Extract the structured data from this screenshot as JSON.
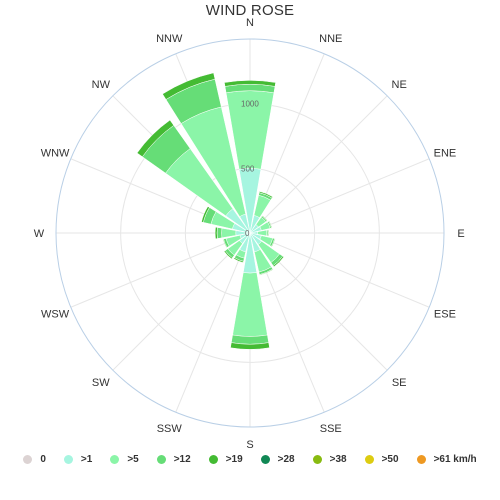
{
  "title": "WIND ROSE",
  "chart_data": {
    "type": "windrose",
    "directions": [
      "N",
      "NNE",
      "NE",
      "ENE",
      "E",
      "ESE",
      "SE",
      "SSE",
      "S",
      "SSW",
      "SW",
      "WSW",
      "W",
      "WNW",
      "NW",
      "NNW"
    ],
    "radial_max": 1500,
    "radial_ticks": [
      "0",
      "500",
      "1000"
    ],
    "radial_tick_values": [
      0,
      500,
      1000
    ],
    "legend": [
      "0",
      ">1",
      ">5",
      ">12",
      ">19",
      ">28",
      ">38",
      ">50",
      ">61 km/h"
    ],
    "legend_colors": [
      "#dcd3d3",
      "#a6f5e0",
      "#8bf5a8",
      "#66dd77",
      "#44bb33",
      "#118855",
      "#88bb11",
      "#ddcc11",
      "#ee9922"
    ],
    "series": [
      {
        "name": ">1",
        "values": [
          500,
          140,
          80,
          90,
          60,
          90,
          110,
          150,
          310,
          150,
          100,
          80,
          110,
          140,
          230,
          150
        ]
      },
      {
        "name": ">5",
        "values": [
          1100,
          300,
          150,
          160,
          130,
          180,
          280,
          310,
          800,
          200,
          210,
          190,
          220,
          310,
          800,
          1000
        ]
      },
      {
        "name": ">12",
        "values": [
          1150,
          320,
          160,
          170,
          140,
          195,
          310,
          330,
          860,
          225,
          235,
          210,
          255,
          370,
          1020,
          1220
        ]
      },
      {
        "name": ">19",
        "values": [
          1180,
          330,
          165,
          175,
          145,
          200,
          320,
          335,
          900,
          235,
          245,
          215,
          270,
          385,
          1070,
          1270
        ]
      }
    ]
  }
}
